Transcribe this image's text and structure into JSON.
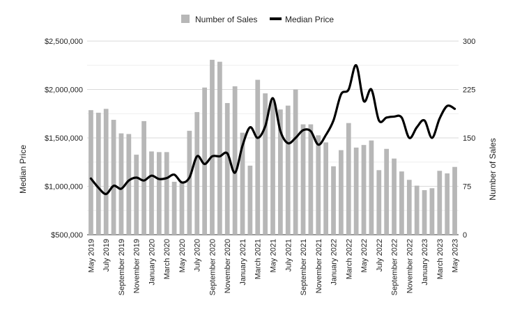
{
  "chart_data": {
    "type": "bar+line",
    "title": "",
    "legend": {
      "position": "top",
      "items": [
        {
          "name": "Number of Sales",
          "color": "#b7b7b7",
          "marker": "square"
        },
        {
          "name": "Median Price",
          "color": "#000000",
          "marker": "line"
        }
      ]
    },
    "ylabel_left": "Median Price",
    "ylabel_right": "Number of Sales",
    "ylim_left": [
      500000,
      2500000
    ],
    "ylim_right": [
      0,
      300
    ],
    "yticks_left": [
      "$500,000",
      "$1,000,000",
      "$1,500,000",
      "$2,000,000",
      "$2,500,000"
    ],
    "yticks_right": [
      "0",
      "75",
      "150",
      "225",
      "300"
    ],
    "grid": true,
    "categories": [
      "May 2019",
      "June 2019",
      "July 2019",
      "August 2019",
      "September 2019",
      "October 2019",
      "November 2019",
      "December 2019",
      "January 2020",
      "February 2020",
      "March 2020",
      "April 2020",
      "May 2020",
      "June 2020",
      "July 2020",
      "August 2020",
      "September 2020",
      "October 2020",
      "November 2020",
      "December 2020",
      "January 2021",
      "February 2021",
      "March 2021",
      "April 2021",
      "May 2021",
      "June 2021",
      "July 2021",
      "August 2021",
      "September 2021",
      "October 2021",
      "November 2021",
      "December 2021",
      "January 2022",
      "February 2022",
      "March 2022",
      "April 2022",
      "May 2022",
      "June 2022",
      "July 2022",
      "August 2022",
      "September 2022",
      "October 2022",
      "November 2022",
      "December 2022",
      "January 2023",
      "February 2023",
      "March 2023",
      "April 2023",
      "May 2023"
    ],
    "shown_xtick_labels": [
      "May 2019",
      "July 2019",
      "September 2019",
      "November 2019",
      "January 2020",
      "March 2020",
      "May 2020",
      "July 2020",
      "September 2020",
      "November 2020",
      "January 2021",
      "March 2021",
      "May 2021",
      "July 2021",
      "September 2021",
      "November 2021",
      "January 2022",
      "March 2022",
      "May 2022",
      "July 2022",
      "September 2022",
      "November 2022",
      "January 2023",
      "March 2023",
      "May 2023"
    ],
    "series": [
      {
        "name": "Number of Sales",
        "type": "bar",
        "axis": "right",
        "values": [
          193,
          189,
          195,
          178,
          157,
          156,
          124,
          176,
          129,
          128,
          128,
          82,
          80,
          161,
          190,
          228,
          271,
          268,
          204,
          230,
          158,
          107,
          240,
          219,
          207,
          194,
          200,
          225,
          171,
          171,
          154,
          143,
          106,
          131,
          173,
          135,
          139,
          146,
          100,
          133,
          118,
          98,
          85,
          76,
          69,
          72,
          99,
          95,
          105
        ]
      },
      {
        "name": "Median Price",
        "type": "line",
        "axis": "left",
        "values": [
          1080000,
          985000,
          920000,
          1005000,
          975000,
          1060000,
          1090000,
          1060000,
          1110000,
          1075000,
          1085000,
          1120000,
          1040000,
          1090000,
          1310000,
          1230000,
          1310000,
          1310000,
          1340000,
          1140000,
          1420000,
          1610000,
          1500000,
          1620000,
          1910000,
          1570000,
          1445000,
          1500000,
          1580000,
          1570000,
          1430000,
          1530000,
          1680000,
          1950000,
          2000000,
          2250000,
          1880000,
          2000000,
          1680000,
          1710000,
          1720000,
          1710000,
          1500000,
          1610000,
          1680000,
          1500000,
          1700000,
          1830000,
          1800000
        ]
      }
    ]
  }
}
